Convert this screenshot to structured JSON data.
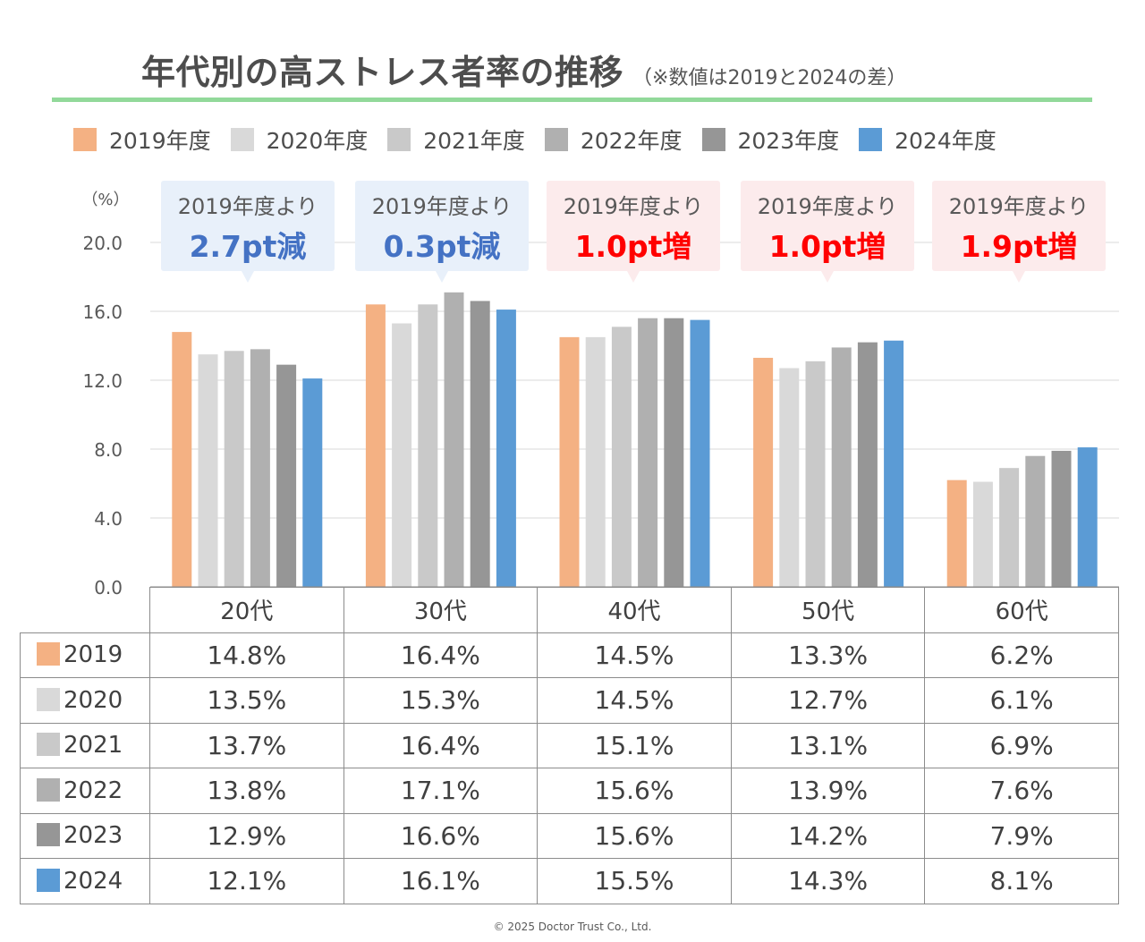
{
  "title": {
    "main": "年代別の高ストレス者率の推移",
    "note": "（※数値は2019と2024の差）"
  },
  "colors": {
    "accent_rule": "#92d99a",
    "series": [
      "#f4b183",
      "#d9d9d9",
      "#c9c9c9",
      "#b0b0b0",
      "#969696",
      "#5b9bd5"
    ]
  },
  "legend": [
    {
      "label": "2019年度"
    },
    {
      "label": "2020年度"
    },
    {
      "label": "2021年度"
    },
    {
      "label": "2022年度"
    },
    {
      "label": "2023年度"
    },
    {
      "label": "2024年度"
    }
  ],
  "callouts": [
    {
      "label": "2019年度より",
      "value": "2.7pt減",
      "direction": "down"
    },
    {
      "label": "2019年度より",
      "value": "0.3pt減",
      "direction": "down"
    },
    {
      "label": "2019年度より",
      "value": "1.0pt増",
      "direction": "up"
    },
    {
      "label": "2019年度より",
      "value": "1.0pt増",
      "direction": "up"
    },
    {
      "label": "2019年度より",
      "value": "1.9pt増",
      "direction": "up"
    }
  ],
  "chart_data": {
    "type": "bar",
    "title": "年代別の高ストレス者率の推移",
    "ylabel": "（%）",
    "ylim": [
      0,
      20
    ],
    "yticks": [
      "0.0",
      "4.0",
      "8.0",
      "12.0",
      "16.0",
      "20.0"
    ],
    "grid": true,
    "legend_position": "top",
    "categories": [
      "20代",
      "30代",
      "40代",
      "50代",
      "60代"
    ],
    "series": [
      {
        "name": "2019年度",
        "values": [
          14.8,
          16.4,
          14.5,
          13.3,
          6.2
        ]
      },
      {
        "name": "2020年度",
        "values": [
          13.5,
          15.3,
          14.5,
          12.7,
          6.1
        ]
      },
      {
        "name": "2021年度",
        "values": [
          13.7,
          16.4,
          15.1,
          13.1,
          6.9
        ]
      },
      {
        "name": "2022年度",
        "values": [
          13.8,
          17.1,
          15.6,
          13.9,
          7.6
        ]
      },
      {
        "name": "2023年度",
        "values": [
          12.9,
          16.6,
          15.6,
          14.2,
          7.9
        ]
      },
      {
        "name": "2024年度",
        "values": [
          12.1,
          16.1,
          15.5,
          14.3,
          8.1
        ]
      }
    ]
  },
  "table": {
    "headers": [
      "20代",
      "30代",
      "40代",
      "50代",
      "60代"
    ],
    "rows": [
      {
        "label": "2019",
        "cells": [
          "14.8%",
          "16.4%",
          "14.5%",
          "13.3%",
          "6.2%"
        ]
      },
      {
        "label": "2020",
        "cells": [
          "13.5%",
          "15.3%",
          "14.5%",
          "12.7%",
          "6.1%"
        ]
      },
      {
        "label": "2021",
        "cells": [
          "13.7%",
          "16.4%",
          "15.1%",
          "13.1%",
          "6.9%"
        ]
      },
      {
        "label": "2022",
        "cells": [
          "13.8%",
          "17.1%",
          "15.6%",
          "13.9%",
          "7.6%"
        ]
      },
      {
        "label": "2023",
        "cells": [
          "12.9%",
          "16.6%",
          "15.6%",
          "14.2%",
          "7.9%"
        ]
      },
      {
        "label": "2024",
        "cells": [
          "12.1%",
          "16.1%",
          "15.5%",
          "14.3%",
          "8.1%"
        ]
      }
    ]
  },
  "copyright": "©  2025 Doctor Trust Co., Ltd."
}
